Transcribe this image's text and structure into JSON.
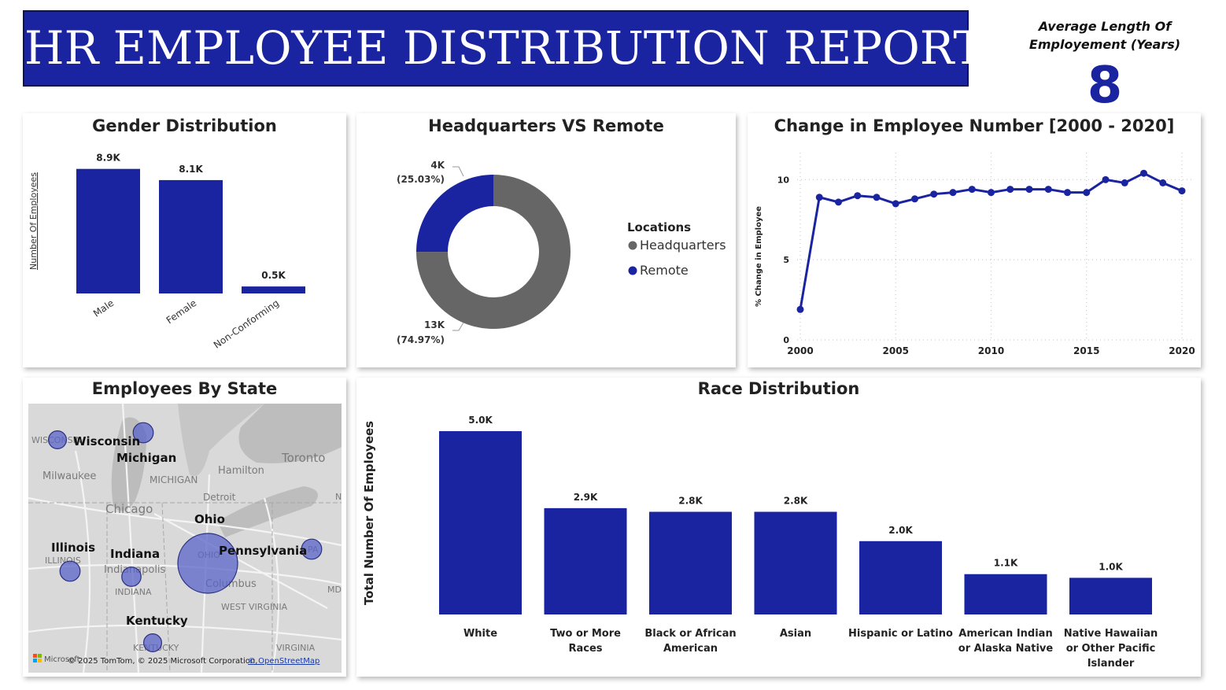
{
  "header": {
    "title": "HR EMPLOYEE DISTRIBUTION REPORT"
  },
  "kpi": {
    "label_line1": "Average Length Of",
    "label_line2": "Employement (Years)",
    "value": "8"
  },
  "colors": {
    "primary": "#1a24a0",
    "gray": "#666666",
    "map_bubble": "#5a63c8"
  },
  "chart_data": [
    {
      "id": "gender",
      "type": "bar",
      "title": "Gender Distribution",
      "ylabel": "Number Of Employees",
      "categories": [
        "Male",
        "Female",
        "Non-Conforming"
      ],
      "values": [
        8.9,
        8.1,
        0.5
      ],
      "labels": [
        "8.9K",
        "8.1K",
        "0.5K"
      ],
      "ylim": [
        0,
        9.5
      ]
    },
    {
      "id": "location",
      "type": "pie",
      "title": "Headquarters VS Remote",
      "legend_title": "Locations",
      "categories": [
        "Headquarters",
        "Remote"
      ],
      "values": [
        74.97,
        25.03
      ],
      "value_labels": [
        "13K",
        "4K"
      ],
      "percent_labels": [
        "(74.97%)",
        "(25.03%)"
      ],
      "colors": [
        "#666666",
        "#1a24a0"
      ],
      "legend_position": "right"
    },
    {
      "id": "change",
      "type": "line",
      "title": "Change in Employee Number [2000 - 2020]",
      "ylabel": "% Change in Employee",
      "x": [
        2000,
        2001,
        2002,
        2003,
        2004,
        2005,
        2006,
        2007,
        2008,
        2009,
        2010,
        2011,
        2012,
        2013,
        2014,
        2015,
        2016,
        2017,
        2018,
        2019,
        2020
      ],
      "values": [
        1.9,
        8.9,
        8.6,
        9.0,
        8.9,
        8.5,
        8.8,
        9.1,
        9.2,
        9.4,
        9.2,
        9.4,
        9.4,
        9.4,
        9.2,
        9.2,
        10.0,
        9.8,
        10.4,
        9.8,
        9.3
      ],
      "xticks": [
        2000,
        2005,
        2010,
        2015,
        2020
      ],
      "yticks": [
        0,
        5,
        10
      ],
      "xlim": [
        2000,
        2020
      ],
      "ylim": [
        0,
        11
      ],
      "grid": true
    },
    {
      "id": "race",
      "type": "bar",
      "title": "Race Distribution",
      "ylabel": "Total Number Of Employees",
      "categories": [
        [
          "White"
        ],
        [
          "Two or More",
          "Races"
        ],
        [
          "Black or African",
          "American"
        ],
        [
          "Asian"
        ],
        [
          "Hispanic or Latino"
        ],
        [
          "American Indian",
          "or Alaska Native"
        ],
        [
          "Native Hawaiian",
          "or Other Pacific",
          "Islander"
        ]
      ],
      "values": [
        5.0,
        2.9,
        2.8,
        2.8,
        2.0,
        1.1,
        1.0
      ],
      "labels": [
        "5.0K",
        "2.9K",
        "2.8K",
        "2.8K",
        "2.0K",
        "1.1K",
        "1.0K"
      ],
      "ylim": [
        0,
        5.2
      ]
    }
  ],
  "map": {
    "title": "Employees By State",
    "states": [
      {
        "name": "Wisconsin",
        "relative_size": 0.05
      },
      {
        "name": "Michigan",
        "relative_size": 0.1
      },
      {
        "name": "Ohio",
        "relative_size": 1.0
      },
      {
        "name": "Illinois",
        "relative_size": 0.1
      },
      {
        "name": "Indiana",
        "relative_size": 0.08
      },
      {
        "name": "Pennsylvania",
        "relative_size": 0.1
      },
      {
        "name": "Kentucky",
        "relative_size": 0.05
      }
    ],
    "basemap_labels": [
      "WISCONSIN",
      "Milwaukee",
      "MICHIGAN",
      "Hamilton",
      "Toronto",
      "Detroit",
      "Chicago",
      "ILLINOIS",
      "Indianapolis",
      "INDIANA",
      "OHIO",
      "Columbus",
      "PA",
      "WEST VIRGINIA",
      "MD",
      "KENTUCKY",
      "VIRGINIA",
      "N"
    ],
    "attribution": "© 2025 TomTom, © 2025 Microsoft Corporation,",
    "attribution_link": "© OpenStreetMap",
    "logo_text": "Microsoft"
  }
}
